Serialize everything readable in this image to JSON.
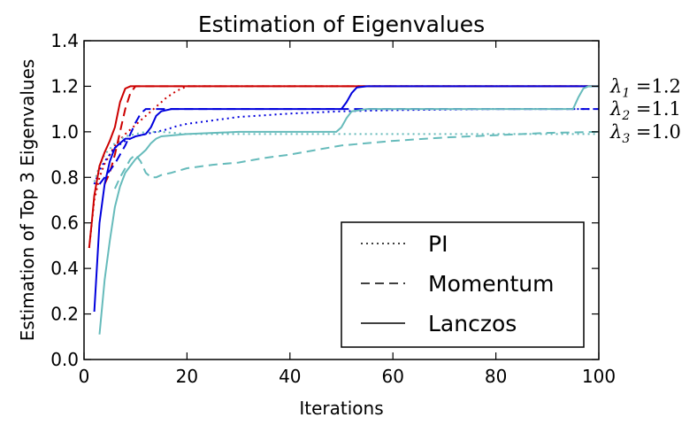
{
  "chart_data": {
    "type": "line",
    "title": "Estimation of Eigenvalues",
    "xlabel": "Iterations",
    "ylabel": "Estimation of Top 3 Eigenvalues",
    "xlim": [
      0,
      100
    ],
    "ylim": [
      0.0,
      1.4
    ],
    "xticks": [
      0,
      20,
      40,
      60,
      80,
      100
    ],
    "yticks": [
      0.0,
      0.2,
      0.4,
      0.6,
      0.8,
      1.0,
      1.2,
      1.4
    ],
    "ytick_labels": [
      "0.0",
      "0.2",
      "0.4",
      "0.6",
      "0.8",
      "1.0",
      "1.2",
      "1.4"
    ],
    "grid": false,
    "legend": {
      "placement": "lower-right",
      "entries": [
        {
          "label": "PI",
          "style": "dotted"
        },
        {
          "label": "Momentum",
          "style": "dashed"
        },
        {
          "label": "Lanczos",
          "style": "solid"
        }
      ]
    },
    "annotations": [
      {
        "symbol": "λ",
        "sub": "1",
        "text": "=1.2",
        "y": 1.2
      },
      {
        "symbol": "λ",
        "sub": "2",
        "text": "=1.1",
        "y": 1.1
      },
      {
        "symbol": "λ",
        "sub": "3",
        "text": "=1.0",
        "y": 1.0
      }
    ],
    "colors": {
      "eig1": "#cc0000",
      "eig2": "#0000dd",
      "eig3": "#66bbbb"
    },
    "series": [
      {
        "method": "PI",
        "eigen": 1,
        "color": "#cc0000",
        "style": "dotted",
        "x": [
          1,
          2,
          3,
          4,
          5,
          6,
          8,
          10,
          12,
          14,
          16,
          18,
          20,
          25,
          30,
          40,
          60,
          80,
          100
        ],
        "y": [
          0.49,
          0.7,
          0.8,
          0.86,
          0.9,
          0.94,
          0.99,
          1.03,
          1.07,
          1.11,
          1.15,
          1.18,
          1.2,
          1.2,
          1.2,
          1.2,
          1.2,
          1.2,
          1.2
        ]
      },
      {
        "method": "PI",
        "eigen": 2,
        "color": "#0000dd",
        "style": "dotted",
        "x": [
          2,
          3,
          4,
          5,
          6,
          8,
          10,
          12,
          14,
          16,
          18,
          20,
          25,
          30,
          40,
          50,
          60,
          80,
          90,
          97,
          100
        ],
        "y": [
          0.77,
          0.83,
          0.87,
          0.9,
          0.93,
          0.96,
          0.98,
          0.99,
          1.0,
          1.01,
          1.025,
          1.035,
          1.05,
          1.065,
          1.08,
          1.09,
          1.095,
          1.1,
          1.1,
          1.1,
          1.1
        ]
      },
      {
        "method": "PI",
        "eigen": 3,
        "color": "#66bbbb",
        "style": "dotted",
        "x": [
          2,
          3,
          4,
          6,
          8,
          10,
          12,
          15,
          20,
          30,
          50,
          70,
          100
        ],
        "y": [
          0.78,
          0.85,
          0.9,
          0.95,
          0.98,
          0.99,
          1.0,
          1.0,
          0.99,
          0.99,
          0.99,
          0.99,
          0.99
        ]
      },
      {
        "method": "Momentum",
        "eigen": 1,
        "color": "#cc0000",
        "style": "dashed",
        "x": [
          4,
          5,
          6,
          7,
          8,
          9,
          10,
          12,
          20,
          40,
          60,
          80,
          100
        ],
        "y": [
          0.77,
          0.82,
          0.9,
          1.0,
          1.1,
          1.17,
          1.2,
          1.2,
          1.2,
          1.2,
          1.2,
          1.2,
          1.2
        ]
      },
      {
        "method": "Momentum",
        "eigen": 2,
        "color": "#0000dd",
        "style": "dashed",
        "x": [
          3,
          4,
          5,
          6,
          7,
          8,
          9,
          10,
          11,
          12,
          14,
          16,
          20,
          40,
          60,
          80,
          90,
          100
        ],
        "y": [
          0.77,
          0.8,
          0.83,
          0.86,
          0.9,
          0.94,
          0.99,
          1.04,
          1.08,
          1.1,
          1.1,
          1.1,
          1.1,
          1.1,
          1.1,
          1.1,
          1.1,
          1.1
        ]
      },
      {
        "method": "Momentum",
        "eigen": 3,
        "color": "#66bbbb",
        "style": "dashed",
        "x": [
          6,
          7,
          8,
          9,
          10,
          11,
          12,
          13,
          14,
          15,
          17,
          20,
          25,
          30,
          35,
          40,
          45,
          50,
          60,
          70,
          80,
          90,
          100
        ],
        "y": [
          0.75,
          0.8,
          0.84,
          0.88,
          0.9,
          0.87,
          0.82,
          0.8,
          0.8,
          0.81,
          0.82,
          0.84,
          0.855,
          0.865,
          0.885,
          0.9,
          0.92,
          0.94,
          0.96,
          0.975,
          0.985,
          0.995,
          1.0
        ]
      },
      {
        "method": "Lanczos",
        "eigen": 1,
        "color": "#cc0000",
        "style": "solid",
        "x": [
          1,
          1.5,
          2,
          3,
          4,
          5,
          6,
          7,
          8,
          9,
          10,
          12,
          20,
          40,
          60,
          80,
          100
        ],
        "y": [
          0.49,
          0.6,
          0.72,
          0.85,
          0.91,
          0.96,
          1.02,
          1.13,
          1.19,
          1.2,
          1.2,
          1.2,
          1.2,
          1.2,
          1.2,
          1.2,
          1.2
        ]
      },
      {
        "method": "Lanczos",
        "eigen": 2,
        "color": "#0000dd",
        "style": "solid",
        "x": [
          2,
          3,
          4,
          5,
          6,
          7,
          8,
          9,
          10,
          11,
          12,
          13,
          14,
          15,
          17,
          20,
          30,
          40,
          50,
          51,
          52,
          53,
          55,
          60,
          80,
          100
        ],
        "y": [
          0.21,
          0.6,
          0.77,
          0.87,
          0.93,
          0.95,
          0.97,
          0.97,
          0.98,
          0.985,
          0.99,
          1.02,
          1.07,
          1.09,
          1.1,
          1.1,
          1.1,
          1.1,
          1.1,
          1.13,
          1.17,
          1.195,
          1.2,
          1.2,
          1.2,
          1.2
        ]
      },
      {
        "method": "Lanczos",
        "eigen": 3,
        "color": "#66bbbb",
        "style": "solid",
        "x": [
          3,
          4,
          5,
          6,
          7,
          8,
          9,
          10,
          11,
          12,
          13,
          14,
          15,
          20,
          30,
          40,
          49,
          50,
          51,
          52,
          55,
          70,
          90,
          95,
          96,
          97,
          98,
          100
        ],
        "y": [
          0.11,
          0.35,
          0.52,
          0.67,
          0.76,
          0.82,
          0.85,
          0.88,
          0.9,
          0.92,
          0.95,
          0.97,
          0.98,
          0.99,
          1.0,
          1.0,
          1.0,
          1.02,
          1.06,
          1.09,
          1.1,
          1.1,
          1.1,
          1.1,
          1.15,
          1.19,
          1.2,
          1.2
        ]
      }
    ]
  }
}
